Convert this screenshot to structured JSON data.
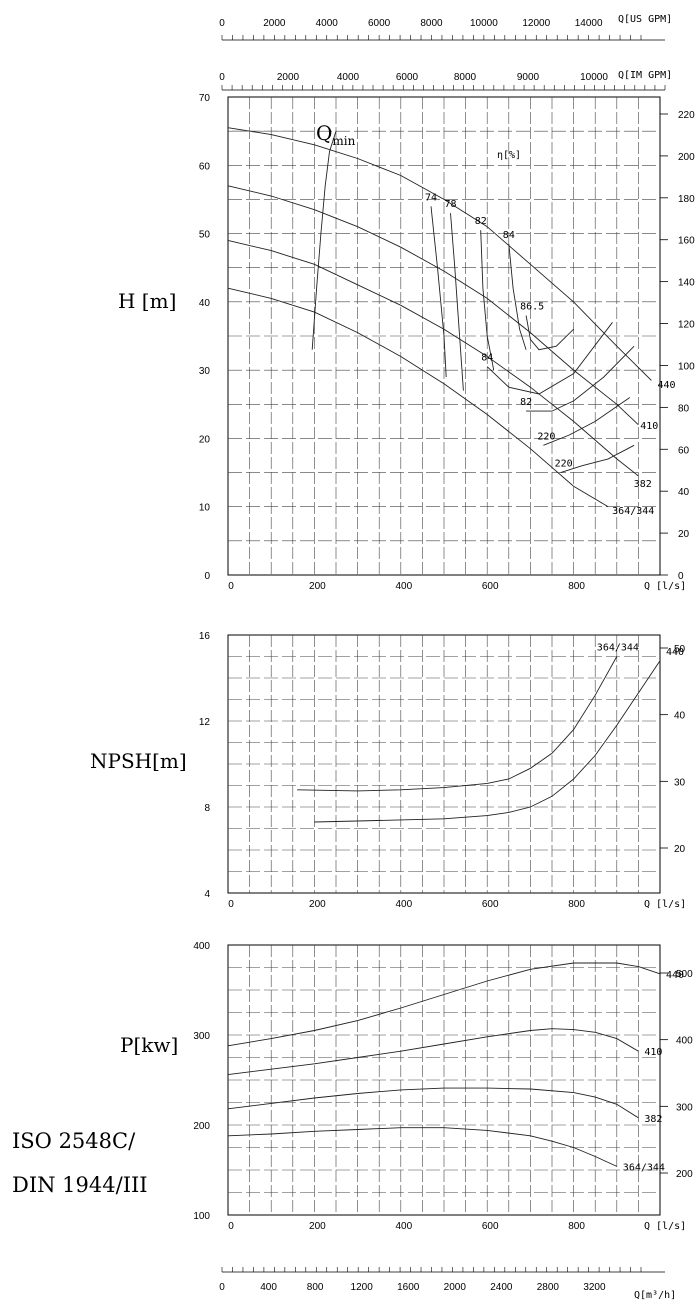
{
  "top_axes": {
    "us_gpm": {
      "unit": "Q[US GPM]",
      "ticks": [
        "0",
        "2000",
        "4000",
        "6000",
        "8000",
        "10000",
        "12000",
        "14000"
      ]
    },
    "im_gpm": {
      "unit": "Q[IM GPM]",
      "ticks": [
        "0",
        "2000",
        "4000",
        "6000",
        "8000",
        "9000",
        "10000"
      ]
    },
    "m3h": {
      "unit": "Q[m³/h]",
      "ticks": [
        "0",
        "400",
        "800",
        "1200",
        "1600",
        "2000",
        "2400",
        "2800",
        "3200"
      ]
    }
  },
  "labels": {
    "qmin": "Q",
    "qmin_sub": "min",
    "eta": "η[%]",
    "q_unit": "Q [l/s]",
    "standard_line1": "ISO 2548C/",
    "standard_line2": "DIN 1944/III"
  },
  "chart_data": [
    {
      "type": "line",
      "name": "head",
      "ylabel": "H [m]",
      "xlabel": "Q [l/s]",
      "xlim": [
        0,
        1000
      ],
      "ylim": [
        0,
        70
      ],
      "x_ticks": [
        "0",
        "200",
        "400",
        "600",
        "800"
      ],
      "y_ticks": [
        "0",
        "10",
        "20",
        "30",
        "40",
        "50",
        "60",
        "70"
      ],
      "y2_ticks": [
        "0",
        "20",
        "40",
        "60",
        "80",
        "100",
        "120",
        "140",
        "160",
        "180",
        "200",
        "220"
      ],
      "series": [
        {
          "name": "440",
          "x": [
            0,
            100,
            200,
            300,
            400,
            500,
            600,
            700,
            800,
            900,
            980
          ],
          "y": [
            65.5,
            64.5,
            63,
            61,
            58.5,
            55,
            51,
            45.5,
            40,
            33.5,
            28.5
          ]
        },
        {
          "name": "410",
          "x": [
            0,
            100,
            200,
            300,
            400,
            500,
            600,
            700,
            800,
            900,
            950
          ],
          "y": [
            57,
            55.5,
            53.5,
            51,
            48,
            44.5,
            40.5,
            35.5,
            30,
            25,
            22
          ]
        },
        {
          "name": "382",
          "x": [
            0,
            100,
            200,
            300,
            400,
            500,
            600,
            700,
            800,
            900,
            950
          ],
          "y": [
            49,
            47.5,
            45.5,
            42.5,
            39.5,
            36,
            32,
            27.5,
            22.5,
            17,
            14.5
          ]
        },
        {
          "name": "364/344",
          "x": [
            0,
            100,
            200,
            300,
            400,
            500,
            600,
            700,
            800,
            880
          ],
          "y": [
            42,
            40.5,
            38.5,
            35.5,
            32,
            28,
            23.5,
            18.5,
            13,
            10
          ]
        }
      ],
      "efficiency_curves": [
        {
          "label": "74",
          "x": [
            470,
            485,
            500,
            505
          ],
          "y": [
            54,
            45,
            35,
            29
          ]
        },
        {
          "label": "78",
          "x": [
            515,
            525,
            535,
            545
          ],
          "y": [
            53,
            45,
            36,
            27
          ]
        },
        {
          "label": "82",
          "x": [
            585,
            590,
            600,
            615
          ],
          "y": [
            50.5,
            42,
            35,
            30
          ]
        },
        {
          "label": "84",
          "x": [
            650,
            660,
            675,
            690
          ],
          "y": [
            48.5,
            42,
            36,
            33
          ]
        },
        {
          "label": "86.5",
          "x": [
            690,
            700,
            720,
            760,
            800
          ],
          "y": [
            38,
            34.5,
            33,
            33.5,
            36
          ]
        },
        {
          "label": "84",
          "x": [
            600,
            650,
            720,
            800,
            890
          ],
          "y": [
            30.5,
            27.5,
            26.5,
            29.5,
            37
          ]
        },
        {
          "label": "82",
          "x": [
            690,
            750,
            800,
            870,
            940
          ],
          "y": [
            24,
            24,
            25.5,
            29,
            33.5
          ]
        },
        {
          "label": "220",
          "x": [
            730,
            790,
            850,
            930
          ],
          "y": [
            19,
            20.5,
            22.5,
            26
          ]
        },
        {
          "label": "220",
          "x": [
            770,
            820,
            880,
            940
          ],
          "y": [
            15,
            16,
            17,
            19
          ]
        }
      ],
      "qmin_curve": {
        "x": [
          195,
          205,
          215,
          225,
          235,
          250
        ],
        "y": [
          33,
          42,
          50,
          57,
          62,
          65
        ]
      },
      "curve_labels": [
        {
          "text": "440",
          "x": 985,
          "y": 28
        },
        {
          "text": "410",
          "x": 945,
          "y": 22
        },
        {
          "text": "382",
          "x": 930,
          "y": 13.5
        },
        {
          "text": "364/344",
          "x": 880,
          "y": 9.5
        }
      ]
    },
    {
      "type": "line",
      "name": "npsh",
      "ylabel": "NPSH[m]",
      "xlabel": "Q [l/s]",
      "xlim": [
        0,
        1000
      ],
      "ylim": [
        4,
        16
      ],
      "x_ticks": [
        "0",
        "200",
        "400",
        "600",
        "800"
      ],
      "y_ticks": [
        "4",
        "8",
        "12",
        "16"
      ],
      "y2_ticks": [
        "20",
        "30",
        "40",
        "50"
      ],
      "series": [
        {
          "name": "364/344",
          "x": [
            160,
            300,
            400,
            500,
            600,
            650,
            700,
            750,
            800,
            850,
            900
          ],
          "y": [
            8.8,
            8.75,
            8.8,
            8.9,
            9.1,
            9.3,
            9.8,
            10.5,
            11.6,
            13.2,
            15
          ]
        },
        {
          "name": "440",
          "x": [
            200,
            300,
            400,
            500,
            600,
            650,
            700,
            750,
            800,
            850,
            900,
            950,
            1000
          ],
          "y": [
            7.3,
            7.35,
            7.4,
            7.45,
            7.6,
            7.75,
            8.0,
            8.5,
            9.3,
            10.4,
            11.8,
            13.3,
            14.8
          ]
        }
      ]
    },
    {
      "type": "line",
      "name": "power",
      "ylabel": "P[kw]",
      "xlabel": "Q [l/s]",
      "xlim": [
        0,
        1000
      ],
      "ylim": [
        100,
        400
      ],
      "x_ticks": [
        "0",
        "200",
        "400",
        "600",
        "800"
      ],
      "y_ticks": [
        "100",
        "200",
        "300",
        "400"
      ],
      "y2_ticks": [
        "200",
        "300",
        "400",
        "500"
      ],
      "series": [
        {
          "name": "440",
          "x": [
            0,
            100,
            200,
            300,
            400,
            500,
            600,
            700,
            800,
            900,
            950,
            1000
          ],
          "y": [
            288,
            296,
            305,
            316,
            330,
            345,
            360,
            373,
            380,
            380,
            376,
            368
          ]
        },
        {
          "name": "410",
          "x": [
            0,
            100,
            200,
            300,
            400,
            500,
            600,
            700,
            750,
            800,
            850,
            900,
            950
          ],
          "y": [
            256,
            262,
            268,
            275,
            282,
            290,
            298,
            305,
            307,
            306,
            303,
            296,
            282
          ]
        },
        {
          "name": "382",
          "x": [
            0,
            100,
            200,
            300,
            400,
            500,
            600,
            700,
            800,
            850,
            900,
            950
          ],
          "y": [
            218,
            224,
            230,
            235,
            239,
            241,
            241,
            240,
            236,
            231,
            223,
            208
          ]
        },
        {
          "name": "364/344",
          "x": [
            0,
            100,
            200,
            300,
            400,
            500,
            600,
            700,
            750,
            800,
            850,
            900
          ],
          "y": [
            188,
            190,
            193,
            195,
            197,
            197,
            194,
            188,
            182,
            175,
            165,
            154
          ]
        }
      ]
    }
  ]
}
